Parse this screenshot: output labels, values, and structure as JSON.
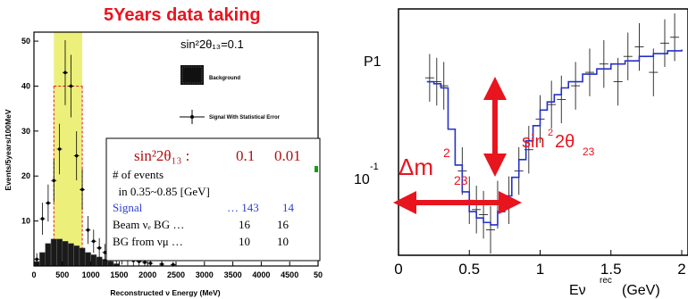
{
  "slide_title": "5Years data taking",
  "colors": {
    "red": "#e8141e",
    "signal_band": "#ecf07a",
    "hist_blue": "#2431c8",
    "signal_text_blue": "#2b3fd1",
    "dark_red": "#b01010"
  },
  "left_panel": {
    "header_label": "sin²2θ₁₃=0.1",
    "legend_background": "Background",
    "legend_signal": "Signal With Statistical Error",
    "table": {
      "header": {
        "label": "sin²2θ₁₃ :",
        "col1": "0.1",
        "col2": "0.01"
      },
      "rows": [
        {
          "label": "# of events",
          "v1": "",
          "v2": ""
        },
        {
          "label": "  in 0.35~0.85 [GeV]",
          "v1": "",
          "v2": ""
        },
        {
          "label": "Signal",
          "v1": "… 143",
          "v2": "14"
        },
        {
          "label": "Beam νₑ BG …",
          "v1": "16",
          "v2": "16"
        },
        {
          "label": "BG from νμ …",
          "v1": "10",
          "v2": "10"
        }
      ]
    }
  },
  "right_panel": {
    "annotation_dm": "Δm",
    "annotation_dm_sup": "2",
    "annotation_dm_sub": "23",
    "annotation_sin": "sin",
    "annotation_sin_sup": "2",
    "annotation_sin_mid": "2θ",
    "annotation_sin_sub": "23"
  },
  "chart_data": [
    {
      "type": "bar",
      "title": "",
      "xlabel": "Reconstructed ν Energy (MeV)",
      "ylabel": "Events/5years/100MeV",
      "xlim": [
        0,
        5000
      ],
      "ylim": [
        0,
        52
      ],
      "x_ticks": [
        "0",
        "500",
        "1000",
        "1500",
        "2000",
        "2500",
        "3000",
        "3500",
        "4000",
        "4500",
        "50"
      ],
      "y_ticks": [
        "10",
        "20",
        "30",
        "40",
        "50"
      ],
      "highlight_band": [
        350,
        850
      ],
      "background_hist": {
        "name": "Background",
        "bin_edges": [
          0,
          100,
          200,
          300,
          400,
          500,
          600,
          700,
          800,
          900,
          1000,
          1100,
          1200,
          1300,
          1400,
          1500
        ],
        "values": [
          1,
          3,
          5,
          6,
          6,
          5.5,
          5,
          4.5,
          4,
          3,
          2.5,
          2,
          1.5,
          1,
          0.5
        ]
      },
      "signal_points": {
        "name": "Signal With Statistical Error",
        "x": [
          50,
          150,
          250,
          350,
          450,
          550,
          650,
          750,
          850,
          950,
          1050,
          1150,
          1250,
          1350,
          1450,
          1550,
          1650,
          1750,
          1850,
          1950,
          2050,
          2250,
          2450
        ],
        "y": [
          1.5,
          10.5,
          14,
          19,
          26,
          43,
          40,
          24.5,
          17,
          8,
          5.5,
          4,
          3,
          2.5,
          2,
          1.8,
          1.5,
          1.2,
          1,
          0.8,
          0.6,
          0.4,
          0.3
        ]
      }
    },
    {
      "type": "line",
      "title": "",
      "ylabel": "P1",
      "xlabel": "Eν rec (GeV)",
      "xlabel_main": "Eν",
      "xlabel_sup": "rec",
      "xlabel_unit": "(GeV)",
      "xlim": [
        0,
        2
      ],
      "x_ticks": [
        "0",
        "0.5",
        "1",
        "1.5",
        "2"
      ],
      "y_ticks": [
        "10⁻¹"
      ],
      "y_tick_base": "10",
      "y_tick_exp": "-1",
      "y_scale": "log",
      "series": [
        {
          "x": [
            0.2,
            0.25,
            0.3,
            0.35,
            0.4,
            0.45,
            0.5,
            0.55,
            0.6,
            0.65,
            0.7,
            0.75,
            0.8,
            0.85,
            0.9,
            0.95,
            1.0,
            1.05,
            1.1,
            1.15,
            1.2,
            1.3,
            1.4,
            1.5,
            1.6,
            1.7,
            1.8,
            1.9,
            2.0
          ],
          "y": [
            0.4,
            0.39,
            0.37,
            0.22,
            0.14,
            0.1,
            0.078,
            0.072,
            0.068,
            0.066,
            0.078,
            0.095,
            0.12,
            0.15,
            0.19,
            0.23,
            0.28,
            0.31,
            0.34,
            0.37,
            0.4,
            0.44,
            0.47,
            0.5,
            0.52,
            0.55,
            0.57,
            0.59,
            0.6
          ]
        }
      ],
      "data_points": {
        "x": [
          0.22,
          0.27,
          0.32,
          0.45,
          0.5,
          0.55,
          0.6,
          0.65,
          0.7,
          0.78,
          0.85,
          0.92,
          1.0,
          1.08,
          1.15,
          1.25,
          1.35,
          1.45,
          1.55,
          1.62,
          1.7,
          1.8,
          1.88,
          1.95
        ],
        "y": [
          0.42,
          0.4,
          0.38,
          0.13,
          0.09,
          0.08,
          0.075,
          0.062,
          0.085,
          0.09,
          0.13,
          0.17,
          0.25,
          0.3,
          0.32,
          0.38,
          0.45,
          0.5,
          0.4,
          0.55,
          0.62,
          0.45,
          0.65,
          0.7
        ]
      }
    }
  ]
}
